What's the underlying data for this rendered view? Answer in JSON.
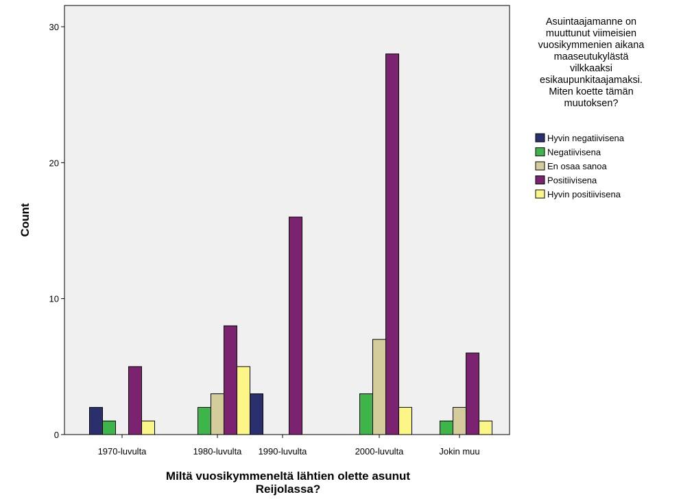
{
  "chart_data": {
    "type": "bar",
    "title": "",
    "xlabel_lines": [
      "Miltä vuosikymmeneltä lähtien olette asunut",
      "Reijolassa?"
    ],
    "ylabel": "Count",
    "ylim": [
      0,
      31.5
    ],
    "yticks": [
      0,
      10,
      20,
      30
    ],
    "grid": false,
    "legend_position": "right",
    "legend_title_lines": [
      "Asuintaajamanne on",
      "muuttunut viimeisien",
      "vuosikymmenien aikana",
      "maaseutukylästä",
      "vilkkaaksi",
      "esikaupunkitaajamaksi.",
      "Miten koette tämän",
      "muutoksen?"
    ],
    "categories": [
      "1970-luvulta",
      "1980-luvulta",
      "1990-luvulta",
      "2000-luvulta",
      "Jokin muu"
    ],
    "series": [
      {
        "name": "Hyvin negatiivisena",
        "color": "#2a2f6e",
        "values": [
          2,
          0,
          3,
          0,
          0
        ]
      },
      {
        "name": "Negatiivisena",
        "color": "#3eb549",
        "values": [
          1,
          2,
          0,
          3,
          1
        ]
      },
      {
        "name": "En osaa sanoa",
        "color": "#d4cc9a",
        "values": [
          0,
          3,
          0,
          7,
          2
        ]
      },
      {
        "name": "Positiivisena",
        "color": "#7b2371",
        "values": [
          5,
          8,
          16,
          28,
          6
        ]
      },
      {
        "name": "Hyvin positiivisena",
        "color": "#fbf685",
        "values": [
          1,
          5,
          0,
          2,
          1
        ]
      }
    ],
    "plot_background": "#f0f0f0"
  }
}
